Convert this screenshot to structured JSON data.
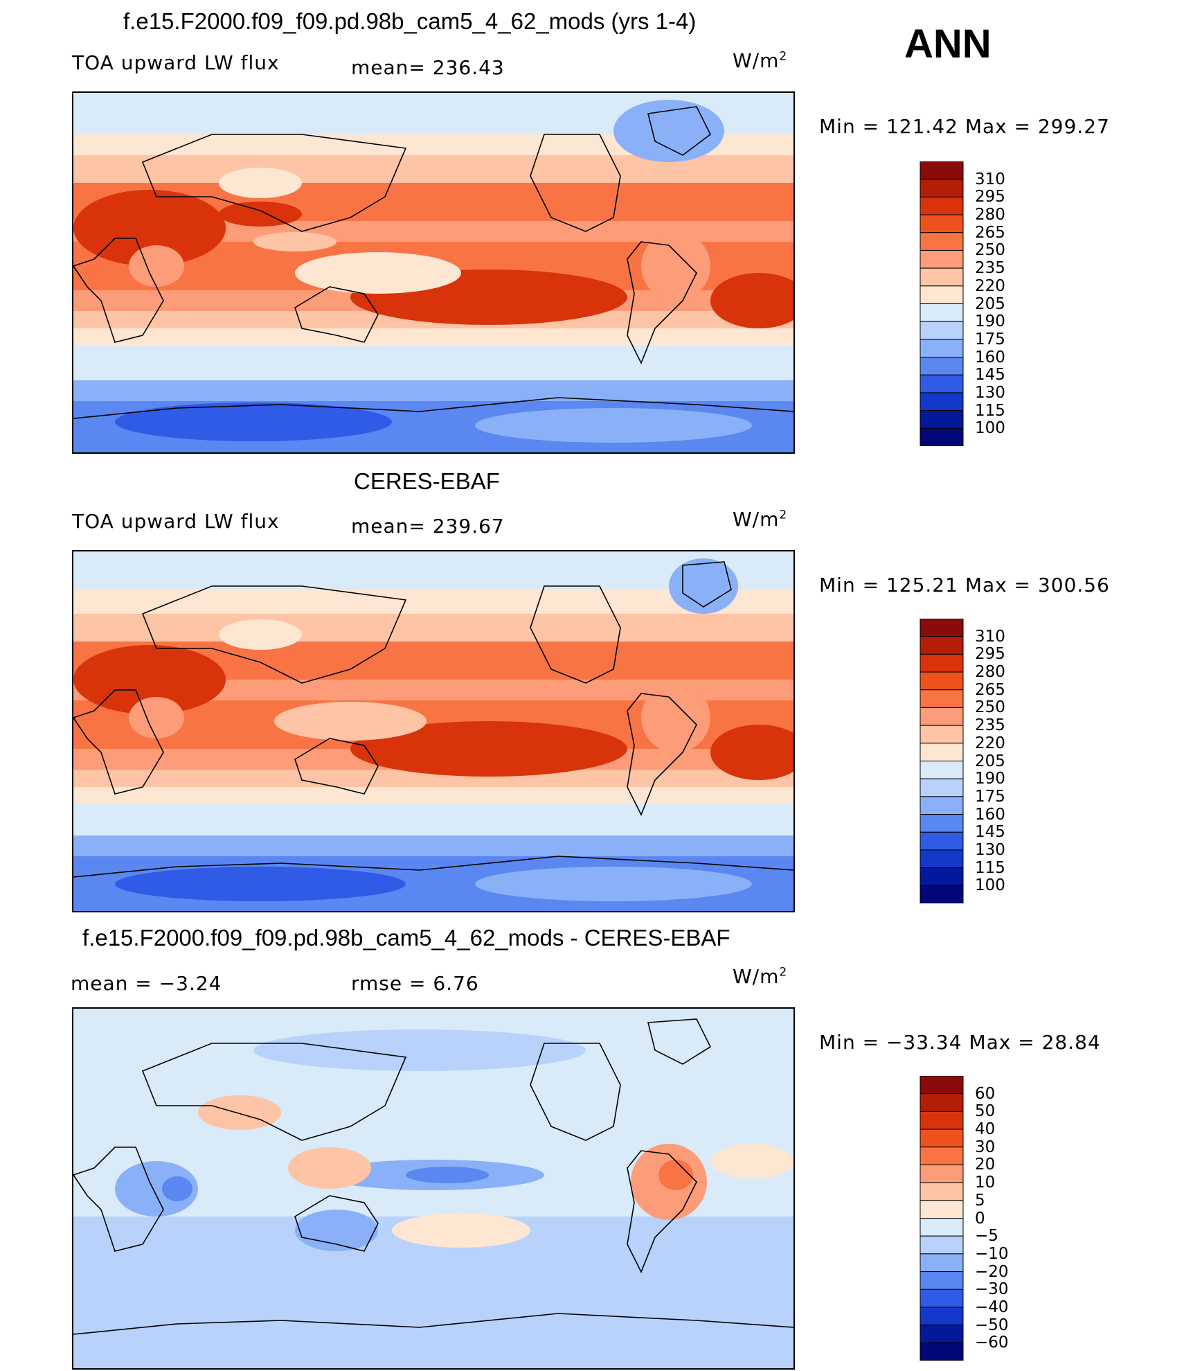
{
  "season": "ANN",
  "unit_main": "W/m",
  "unit_sup": "2",
  "panels": [
    {
      "title": "f.e15.F2000.f09_f09.pd.98b_cam5_4_62_mods (yrs 1-4)",
      "left": "TOA upward LW flux",
      "center": "mean=  236.43",
      "minmax": "Min  =  121.42  Max  =  299.27",
      "levels": [
        "310",
        "295",
        "280",
        "265",
        "250",
        "235",
        "220",
        "205",
        "190",
        "175",
        "160",
        "145",
        "130",
        "115",
        "100"
      ],
      "colors": [
        "#8b0a0a",
        "#b51e06",
        "#d8330b",
        "#f0521d",
        "#f87444",
        "#fc9c78",
        "#fdc4a6",
        "#fde6d2",
        "#d9eaf9",
        "#b8d2fb",
        "#8ab0f8",
        "#5a88f0",
        "#2f5be6",
        "#1438c9",
        "#04189c",
        "#02087a"
      ]
    },
    {
      "title": "CERES-EBAF",
      "left": "TOA upward LW flux",
      "center": "mean=  239.67",
      "minmax": "Min  =  125.21  Max  =  300.56",
      "levels": [
        "310",
        "295",
        "280",
        "265",
        "250",
        "235",
        "220",
        "205",
        "190",
        "175",
        "160",
        "145",
        "130",
        "115",
        "100"
      ],
      "colors": [
        "#8b0a0a",
        "#b51e06",
        "#d8330b",
        "#f0521d",
        "#f87444",
        "#fc9c78",
        "#fdc4a6",
        "#fde6d2",
        "#d9eaf9",
        "#b8d2fb",
        "#8ab0f8",
        "#5a88f0",
        "#2f5be6",
        "#1438c9",
        "#04189c",
        "#02087a"
      ]
    },
    {
      "title": "f.e15.F2000.f09_f09.pd.98b_cam5_4_62_mods - CERES-EBAF",
      "left": "mean  =     −3.24",
      "center": "rmse  =     6.76",
      "minmax": "Min  =  −33.34  Max  =    28.84",
      "levels": [
        "60",
        "50",
        "40",
        "30",
        "20",
        "10",
        "5",
        "0",
        "−5",
        "−10",
        "−20",
        "−30",
        "−40",
        "−50",
        "−60"
      ],
      "colors": [
        "#8b0a0a",
        "#b51e06",
        "#d8330b",
        "#f0521d",
        "#f87444",
        "#fc9c78",
        "#fdc4a6",
        "#fde6d2",
        "#d9eaf9",
        "#b8d2fb",
        "#8ab0f8",
        "#5a88f0",
        "#2f5be6",
        "#1438c9",
        "#04189c",
        "#02087a"
      ]
    }
  ]
}
